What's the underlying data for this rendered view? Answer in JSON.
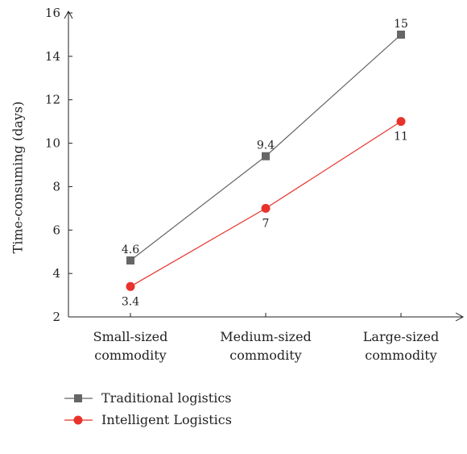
{
  "chart_data": {
    "type": "line",
    "ylabel": "Time-consuming (days)",
    "xlabel": "",
    "ylim": [
      2,
      16
    ],
    "yticks": [
      2,
      4,
      6,
      8,
      10,
      12,
      14,
      16
    ],
    "grid": false,
    "legend_position": "bottom-left",
    "categories": [
      [
        "Small-sized",
        "commodity"
      ],
      [
        "Medium-sized",
        "commodity"
      ],
      [
        "Large-sized",
        "commodity"
      ]
    ],
    "series": [
      {
        "name": "Traditional logistics",
        "values": [
          4.6,
          9.4,
          15
        ],
        "labels": [
          "4.6",
          "9.4",
          "15"
        ],
        "color": "#666666",
        "marker": "square",
        "label_side": "above"
      },
      {
        "name": "Intelligent Logistics",
        "values": [
          3.4,
          7,
          11
        ],
        "labels": [
          "3.4",
          "7",
          "11"
        ],
        "color": "#e8322c",
        "marker": "circle",
        "label_side": "below"
      }
    ]
  }
}
